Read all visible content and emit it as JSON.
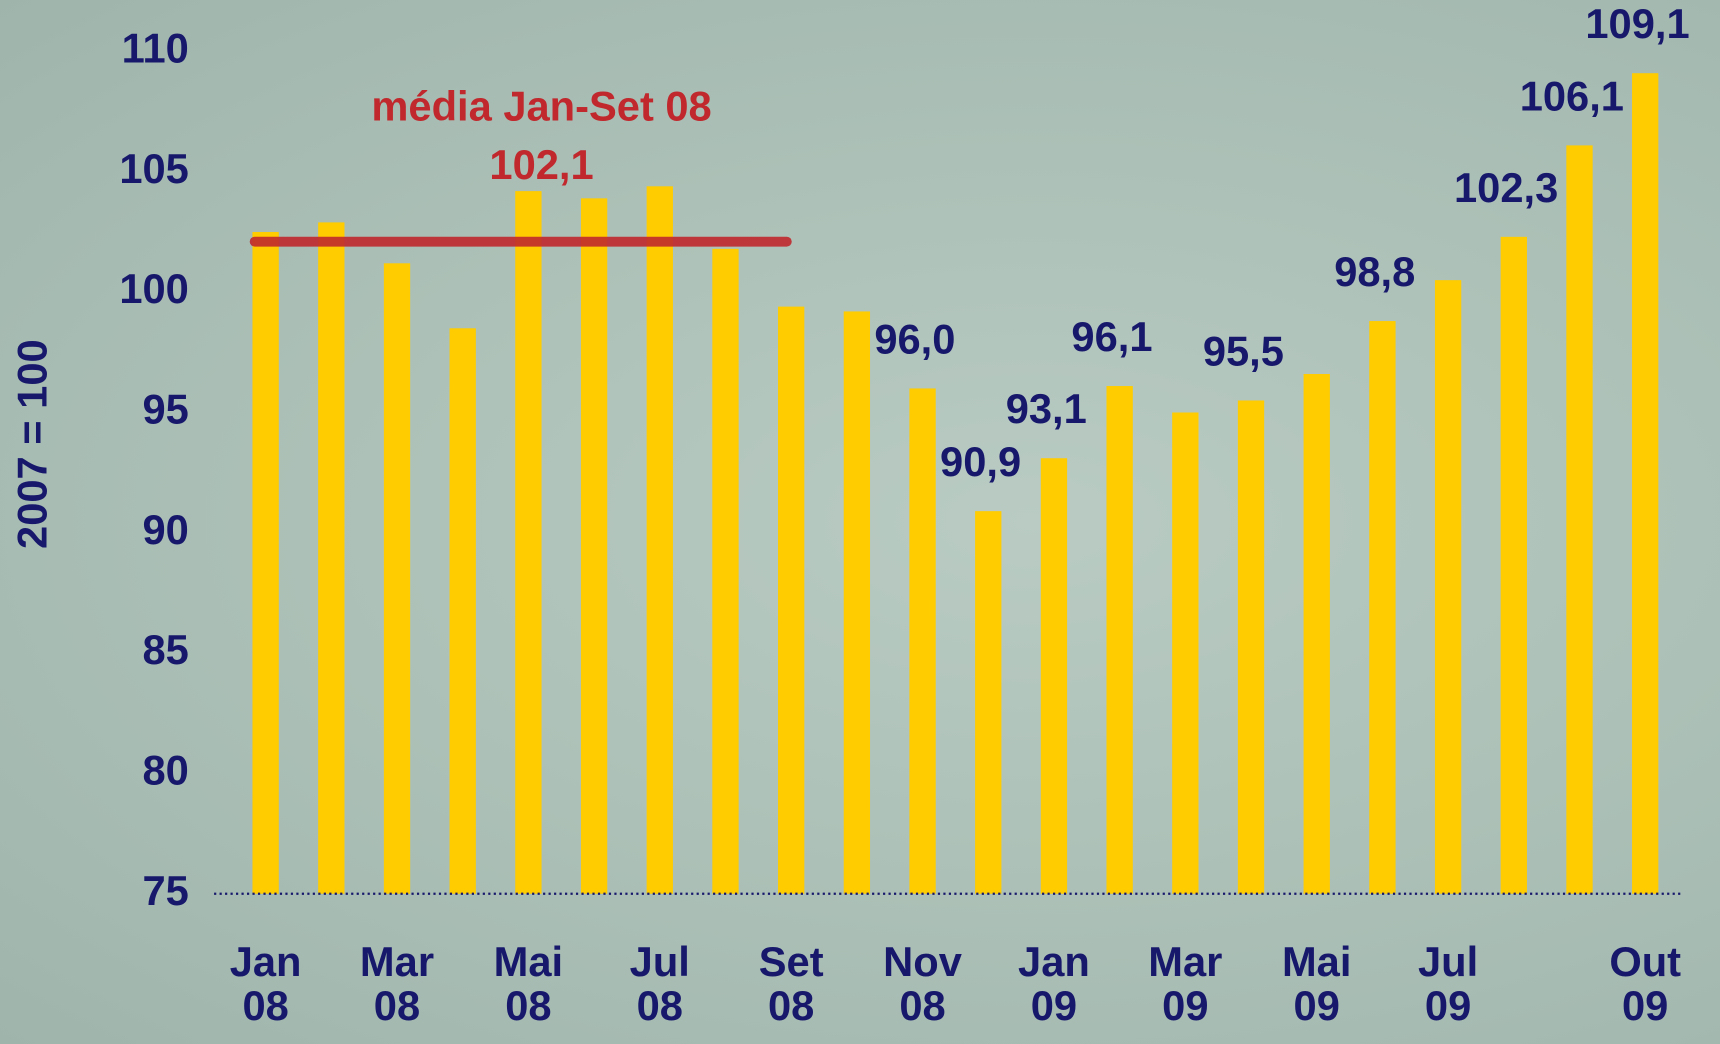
{
  "chart_data": {
    "type": "bar",
    "y_label": "2007 = 100",
    "categories": [
      "Jan 08",
      null,
      "Mar 08",
      null,
      "Mai 08",
      null,
      "Jul 08",
      null,
      "Set 08",
      null,
      "Nov 08",
      null,
      "Jan 09",
      null,
      "Mar 09",
      null,
      "Mai 09",
      null,
      "Jul 09",
      null,
      null,
      "Out 09"
    ],
    "values": [
      102.5,
      102.9,
      101.2,
      98.5,
      104.2,
      103.9,
      104.4,
      101.8,
      99.4,
      99.2,
      96.0,
      90.9,
      93.1,
      96.1,
      95.0,
      95.5,
      96.6,
      98.8,
      100.5,
      102.3,
      106.1,
      109.1
    ],
    "value_labels": [
      null,
      null,
      null,
      null,
      null,
      null,
      null,
      null,
      null,
      null,
      "96,0",
      "90,9",
      "93,1",
      "96,1",
      null,
      "95,5",
      null,
      "98,8",
      null,
      "102,3",
      "106,1",
      "109,1"
    ],
    "color": "#ffcc00",
    "ylim": [
      75,
      110
    ],
    "yticks": [
      75,
      80,
      85,
      90,
      95,
      100,
      105,
      110
    ],
    "annotation": {
      "text": "média Jan-Set 08",
      "value": 102.1,
      "label": "102,1",
      "from": 0,
      "to": 8,
      "color": "#c0282d"
    }
  }
}
